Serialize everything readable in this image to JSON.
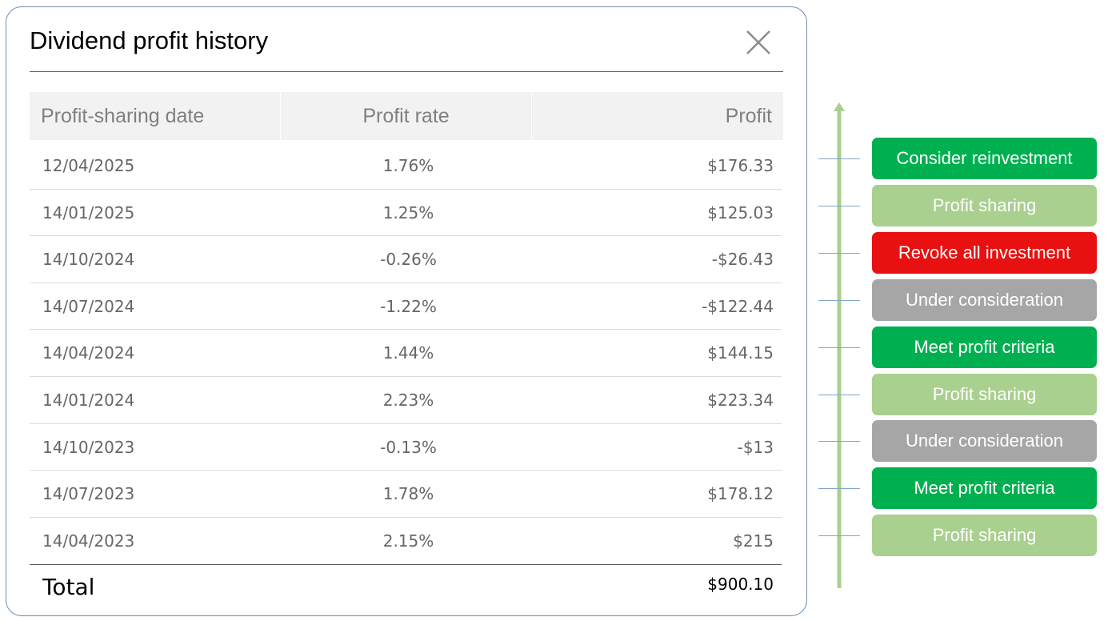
{
  "dialog": {
    "title": "Dividend profit history"
  },
  "table": {
    "headers": [
      "Profit-sharing date",
      "Profit rate",
      "Profit"
    ],
    "rows": [
      [
        "12/04/2025",
        "1.76%",
        "$176.33"
      ],
      [
        "14/01/2025",
        "1.25%",
        "$125.03"
      ],
      [
        "14/10/2024",
        "-0.26%",
        "-$26.43"
      ],
      [
        "14/07/2024",
        "-1.22%",
        "-$122.44"
      ],
      [
        "14/04/2024",
        "1.44%",
        "$144.15"
      ],
      [
        "14/01/2024",
        "2.23%",
        "$223.34"
      ],
      [
        "14/10/2023",
        "-0.13%",
        "-$13"
      ],
      [
        "14/07/2023",
        "1.78%",
        "$178.12"
      ],
      [
        "14/04/2023",
        "2.15%",
        "$215"
      ]
    ],
    "total": {
      "label": "Total",
      "value": "$900.10"
    }
  },
  "statuses": [
    {
      "label": "Consider reinvestment",
      "color": "#00b050"
    },
    {
      "label": "Profit sharing",
      "color": "#a9d08e"
    },
    {
      "label": "Revoke all investment",
      "color": "#e81010"
    },
    {
      "label": "Under consideration",
      "color": "#a6a6a6"
    },
    {
      "label": "Meet profit criteria",
      "color": "#00b050"
    },
    {
      "label": "Profit sharing",
      "color": "#a9d08e"
    },
    {
      "label": "Under consideration",
      "color": "#a6a6a6"
    },
    {
      "label": "Meet profit criteria",
      "color": "#00b050"
    },
    {
      "label": "Profit sharing",
      "color": "#a9d08e"
    }
  ]
}
